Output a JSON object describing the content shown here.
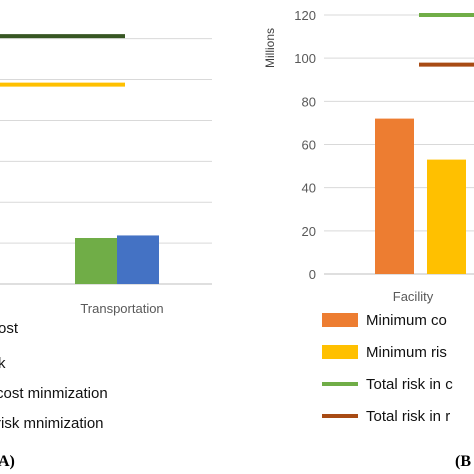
{
  "chart_data": [
    {
      "panel_label": "A)",
      "type": "bar",
      "categories": [
        "Transportation"
      ],
      "series": [
        {
          "name": "ost",
          "type": "bar",
          "values": [
            null
          ],
          "color": "#ed7d31"
        },
        {
          "name": "k",
          "type": "bar",
          "values": [
            null
          ],
          "color": "#ffc000"
        },
        {
          "name": "cost minmization",
          "type": "line",
          "values": [
            null
          ],
          "color": "#70ad47"
        },
        {
          "name": "risk mnimization",
          "type": "line",
          "values": [
            null
          ],
          "color": "#a84b14"
        },
        {
          "name": "",
          "type": "bar",
          "values": [
            18
          ],
          "color": "#70ad47"
        },
        {
          "name": "",
          "type": "bar",
          "values": [
            19
          ],
          "color": "#4472c4"
        }
      ],
      "reference_lines": [
        {
          "value": 97,
          "color": "#375623"
        },
        {
          "value": 78,
          "color": "#ffc000"
        }
      ],
      "ylim": [
        0,
        108
      ],
      "grid": true
    },
    {
      "panel_label": "(B",
      "type": "bar",
      "categories": [
        "Facility"
      ],
      "ylabel": "Millions",
      "yticks": [
        "0",
        "20",
        "40",
        "60",
        "80",
        "100",
        "120"
      ],
      "ylim": [
        0,
        120
      ],
      "series": [
        {
          "name": "Minimum co",
          "type": "bar",
          "values": [
            72
          ],
          "color": "#ed7d31"
        },
        {
          "name": "Minimum ris",
          "type": "bar",
          "values": [
            53
          ],
          "color": "#ffc000"
        },
        {
          "name": "Total risk in c",
          "type": "line",
          "values": [
            120
          ],
          "color": "#70ad47"
        },
        {
          "name": "Total risk in r",
          "type": "line",
          "values": [
            97
          ],
          "color": "#a84b14"
        }
      ],
      "grid": true
    }
  ]
}
